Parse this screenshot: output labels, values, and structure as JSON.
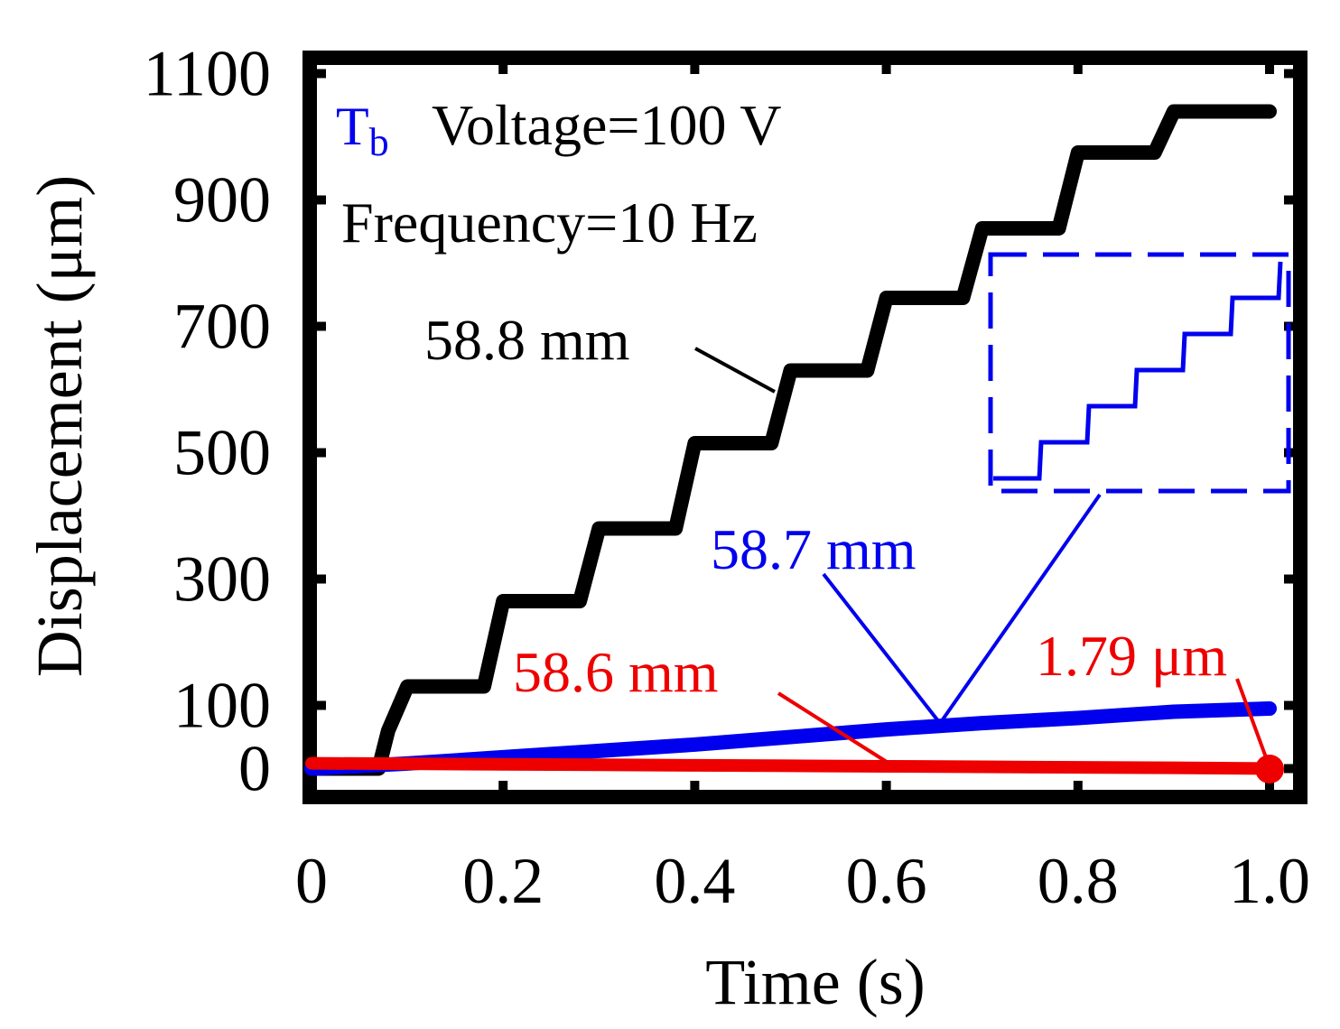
{
  "chart_data": {
    "type": "line",
    "title": "",
    "xlabel": "Time (s)",
    "ylabel": "Displacement (μm)",
    "xlim": [
      0,
      1.0
    ],
    "ylim": [
      -45,
      1125
    ],
    "grid": false,
    "x_ticks": [
      0,
      0.2,
      0.4,
      0.6,
      0.8,
      1.0
    ],
    "x_tick_labels": [
      "0",
      "0.2",
      "0.4",
      "0.6",
      "0.8",
      "1.0"
    ],
    "y_ticks": [
      0,
      100,
      300,
      500,
      700,
      900,
      1100
    ],
    "y_tick_labels": [
      "0",
      "100",
      "300",
      "500",
      "700",
      "900",
      "1100"
    ],
    "annotations": {
      "tb_label": "T",
      "tb_sub": "b",
      "voltage": "Voltage=100 V",
      "frequency": "Frequency=10 Hz"
    },
    "colors": {
      "black_series": "#000000",
      "blue_series": "#0000ee",
      "red_series": "#ee0000",
      "tb_label": "#0000ee"
    },
    "series": [
      {
        "name": "58.8 mm",
        "label": "58.8 mm",
        "color": "#000000",
        "x": [
          0,
          0.07,
          0.08,
          0.1,
          0.18,
          0.2,
          0.28,
          0.3,
          0.38,
          0.4,
          0.48,
          0.5,
          0.58,
          0.6,
          0.68,
          0.7,
          0.78,
          0.8,
          0.88,
          0.9,
          1.0
        ],
        "y": [
          0,
          0,
          60,
          130,
          130,
          265,
          265,
          380,
          380,
          515,
          515,
          630,
          630,
          745,
          745,
          855,
          855,
          975,
          975,
          1040,
          1040
        ]
      },
      {
        "name": "58.7 mm",
        "label": "58.7 mm",
        "color": "#0000ee",
        "x": [
          0,
          0.1,
          0.2,
          0.3,
          0.4,
          0.5,
          0.6,
          0.7,
          0.8,
          0.9,
          1.0
        ],
        "y": [
          0,
          8,
          18,
          28,
          38,
          50,
          62,
          72,
          80,
          90,
          95
        ]
      },
      {
        "name": "58.6 mm",
        "label": "58.6 mm",
        "color": "#ee0000",
        "x": [
          0,
          0.1,
          0.2,
          0.3,
          0.4,
          0.5,
          0.6,
          0.7,
          0.8,
          0.9,
          1.0
        ],
        "y": [
          2.0,
          1.98,
          1.96,
          1.94,
          1.92,
          1.9,
          1.88,
          1.86,
          1.84,
          1.82,
          1.79
        ],
        "end_label": "1.79 μm"
      }
    ],
    "inset": {
      "description": "zoom of 58.7 mm staircase",
      "steps_x": [
        0,
        1,
        2,
        3,
        4,
        5
      ],
      "steps_y": [
        0,
        1,
        2,
        3,
        4,
        5
      ]
    }
  }
}
